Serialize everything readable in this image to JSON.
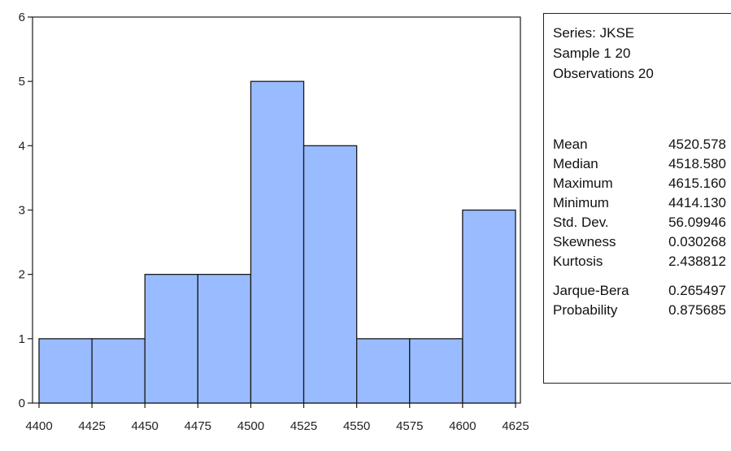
{
  "chart_data": {
    "type": "bar",
    "subtype": "histogram",
    "bin_edges": [
      4400,
      4425,
      4450,
      4475,
      4500,
      4525,
      4550,
      4575,
      4600,
      4625
    ],
    "values": [
      1,
      1,
      2,
      2,
      5,
      4,
      1,
      1,
      3
    ],
    "x_ticks": [
      "4400",
      "4425",
      "4450",
      "4475",
      "4500",
      "4525",
      "4550",
      "4575",
      "4600",
      "4625"
    ],
    "y_ticks": [
      "0",
      "1",
      "2",
      "3",
      "4",
      "5",
      "6"
    ],
    "xlim": [
      4400,
      4625
    ],
    "ylim": [
      0,
      6
    ],
    "title": "",
    "xlabel": "",
    "ylabel": "",
    "grid": false,
    "colors": {
      "bar_fill": "#99bbff",
      "bar_stroke": "#1a1a1a",
      "axis": "#1a1a1a"
    }
  },
  "stats": {
    "series": "Series: JKSE",
    "sample": "Sample 1 20",
    "observations": "Observations 20",
    "rows": [
      {
        "name": "Mean",
        "value": "4520.578"
      },
      {
        "name": "Median",
        "value": "4518.580"
      },
      {
        "name": "Maximum",
        "value": "4615.160"
      },
      {
        "name": "Minimum",
        "value": "4414.130"
      },
      {
        "name": "Std. Dev.",
        "value": "56.09946"
      },
      {
        "name": "Skewness",
        "value": "0.030268"
      },
      {
        "name": "Kurtosis",
        "value": "2.438812"
      },
      {
        "name": "Jarque-Bera",
        "value": "0.265497"
      },
      {
        "name": "Probability",
        "value": "0.875685"
      }
    ]
  }
}
